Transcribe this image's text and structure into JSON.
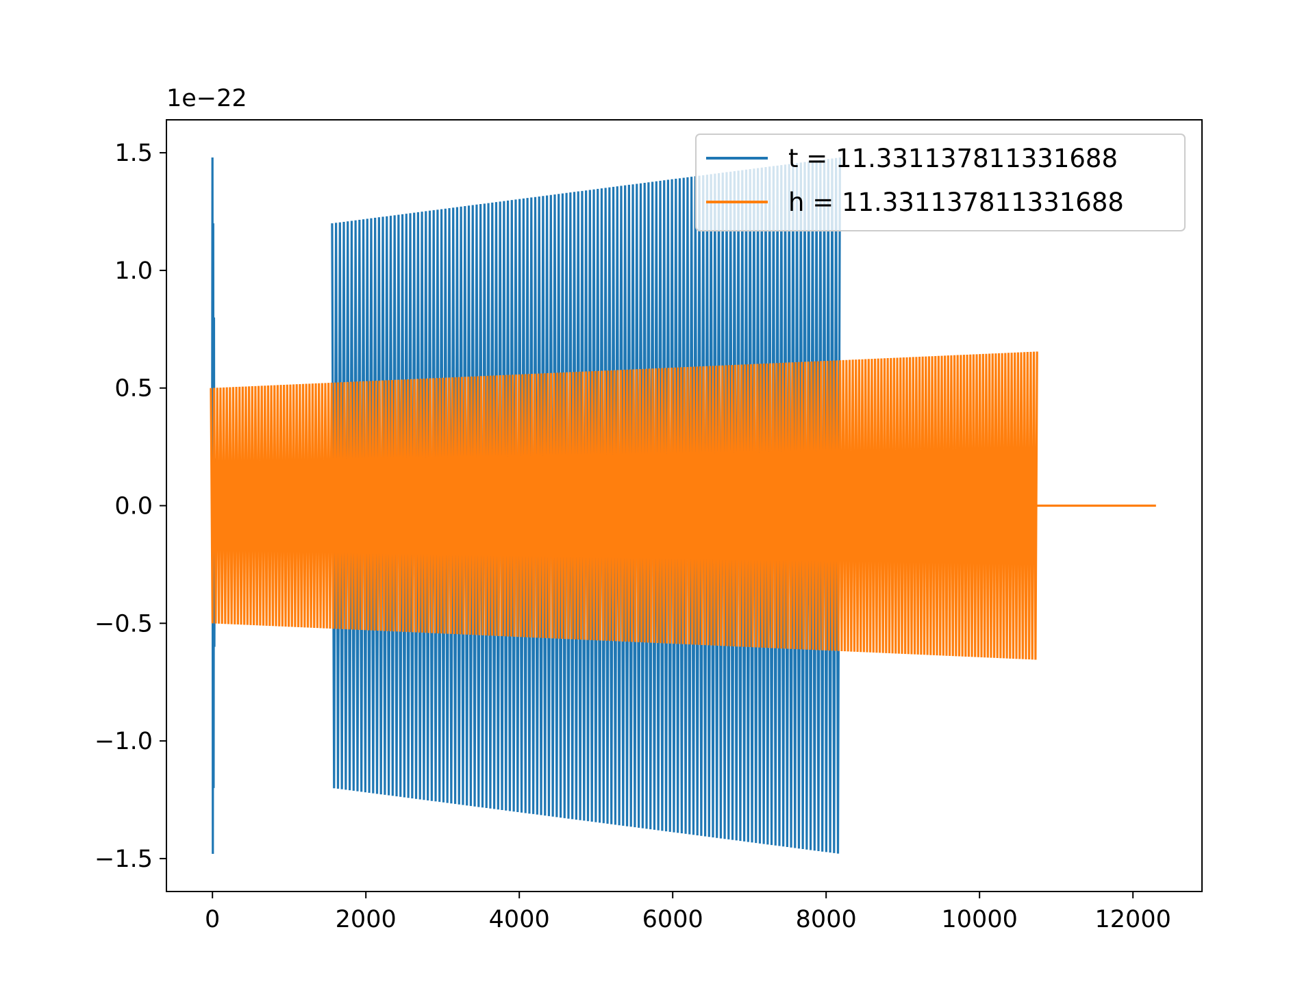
{
  "chart_data": {
    "type": "line",
    "title": "",
    "xlabel": "",
    "ylabel": "",
    "y_offset_label": "1e−22",
    "xlim": [
      -600,
      12900
    ],
    "ylim": [
      -1.64,
      1.64
    ],
    "x_ticks": [
      0,
      2000,
      4000,
      6000,
      8000,
      10000,
      12000
    ],
    "x_tick_labels": [
      "0",
      "2000",
      "4000",
      "6000",
      "8000",
      "10000",
      "12000"
    ],
    "y_ticks": [
      -1.5,
      -1.0,
      -0.5,
      0.0,
      0.5,
      1.0,
      1.5
    ],
    "y_tick_labels": [
      "−1.5",
      "−1.0",
      "−0.5",
      "0.0",
      "0.5",
      "1.0",
      "1.5"
    ],
    "grid": false,
    "legend_position": "top-right",
    "series": [
      {
        "name": "t = 11.331137811331688",
        "color": "#1f77b4",
        "segments": [
          {
            "x": [
              -5,
              0,
              5,
              10,
              15,
              20,
              25,
              30,
              35
            ],
            "y": [
              0,
              1.48,
              -1.48,
              1.2,
              -1.2,
              0.8,
              -0.6,
              0.2,
              0
            ]
          },
          {
            "x_start": 1560,
            "x_end": 8180,
            "amp_start": 1.2,
            "amp_end": 1.48,
            "cycles": 130
          }
        ]
      },
      {
        "name": "h = 11.331137811331688",
        "color": "#ff7f0e",
        "segments": [
          {
            "x_start": -20,
            "x_end": 10750,
            "amp_start": 0.5,
            "amp_end": 0.655,
            "cycles": 260
          },
          {
            "x": [
              10750,
              12300
            ],
            "y": [
              0,
              0
            ]
          }
        ]
      }
    ]
  }
}
